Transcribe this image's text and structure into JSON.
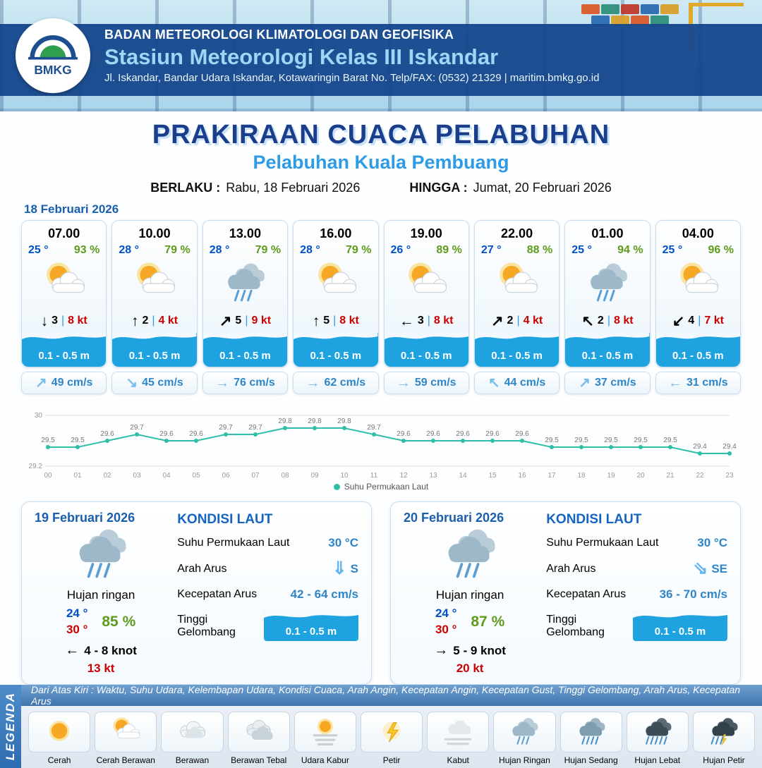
{
  "header": {
    "agency": "BADAN METEOROLOGI KLIMATOLOGI DAN GEOFISIKA",
    "station": "Stasiun Meteorologi Kelas III Iskandar",
    "address": "Jl. Iskandar, Bandar Udara Iskandar, Kotawaringin Barat No. Telp/FAX: (0532) 21329 | maritim.bmkg.go.id",
    "logo_label": "BMKG"
  },
  "title": {
    "main": "PRAKIRAAN CUACA PELABUHAN",
    "subtitle": "Pelabuhan Kuala Pembuang",
    "berlaku_label": "BERLAKU :",
    "berlaku_value": "Rabu, 18 Februari 2026",
    "hingga_label": "HINGGA :",
    "hingga_value": "Jumat, 20 Februari 2026"
  },
  "forecast_date": "18 Februari 2026",
  "forecast_cards": [
    {
      "time": "07.00",
      "temp": "25 °",
      "humidity": "93 %",
      "icon": "cerah-berawan",
      "wind_arrow": "↓",
      "wind_speed": "3",
      "divider": "|",
      "gust": "8 kt",
      "wave": "0.1 - 0.5 m",
      "current_arrow": "↗",
      "current": "49 cm/s"
    },
    {
      "time": "10.00",
      "temp": "28 °",
      "humidity": "79 %",
      "icon": "cerah-berawan",
      "wind_arrow": "↑",
      "wind_speed": "2",
      "divider": "|",
      "gust": "4 kt",
      "wave": "0.1 - 0.5 m",
      "current_arrow": "↘",
      "current": "45 cm/s"
    },
    {
      "time": "13.00",
      "temp": "28 °",
      "humidity": "79 %",
      "icon": "hujan-ringan",
      "wind_arrow": "↗",
      "wind_speed": "5",
      "divider": "|",
      "gust": "9 kt",
      "wave": "0.1 - 0.5 m",
      "current_arrow": "→",
      "current": "76 cm/s"
    },
    {
      "time": "16.00",
      "temp": "28 °",
      "humidity": "79 %",
      "icon": "cerah-berawan",
      "wind_arrow": "↑",
      "wind_speed": "5",
      "divider": "|",
      "gust": "8 kt",
      "wave": "0.1 - 0.5 m",
      "current_arrow": "→",
      "current": "62 cm/s"
    },
    {
      "time": "19.00",
      "temp": "26 °",
      "humidity": "89 %",
      "icon": "cerah-berawan",
      "wind_arrow": "←",
      "wind_speed": "3",
      "divider": "|",
      "gust": "8 kt",
      "wave": "0.1 - 0.5 m",
      "current_arrow": "→",
      "current": "59 cm/s"
    },
    {
      "time": "22.00",
      "temp": "27 °",
      "humidity": "88 %",
      "icon": "cerah-berawan",
      "wind_arrow": "↗",
      "wind_speed": "2",
      "divider": "|",
      "gust": "4 kt",
      "wave": "0.1 - 0.5 m",
      "current_arrow": "↖",
      "current": "44 cm/s"
    },
    {
      "time": "01.00",
      "temp": "25 °",
      "humidity": "94 %",
      "icon": "hujan-ringan",
      "wind_arrow": "↖",
      "wind_speed": "2",
      "divider": "|",
      "gust": "8 kt",
      "wave": "0.1 - 0.5 m",
      "current_arrow": "↗",
      "current": "37 cm/s"
    },
    {
      "time": "04.00",
      "temp": "25 °",
      "humidity": "96 %",
      "icon": "cerah-berawan",
      "wind_arrow": "↙",
      "wind_speed": "4",
      "divider": "|",
      "gust": "7 kt",
      "wave": "0.1 - 0.5 m",
      "current_arrow": "←",
      "current": "31 cm/s"
    }
  ],
  "chart_data": {
    "type": "line",
    "series_name": "Suhu Permukaan Laut",
    "x": [
      "00",
      "01",
      "02",
      "03",
      "04",
      "05",
      "06",
      "07",
      "08",
      "09",
      "10",
      "11",
      "12",
      "13",
      "14",
      "15",
      "16",
      "17",
      "18",
      "19",
      "20",
      "21",
      "22",
      "23"
    ],
    "values": [
      29.5,
      29.5,
      29.6,
      29.7,
      29.6,
      29.6,
      29.7,
      29.7,
      29.8,
      29.8,
      29.8,
      29.7,
      29.6,
      29.6,
      29.6,
      29.6,
      29.6,
      29.5,
      29.5,
      29.5,
      29.5,
      29.5,
      29.4,
      29.4
    ],
    "ylim": [
      29.2,
      30
    ],
    "yticks": [
      29.2,
      30
    ],
    "line_color": "#2fbfa8",
    "grid": true,
    "legend_position": "bottom"
  },
  "day_cards": [
    {
      "date": "19 Februari 2026",
      "icon": "hujan-ringan",
      "condition": "Hujan ringan",
      "temp_min": "24 °",
      "temp_max": "30 °",
      "humidity": "85 %",
      "wind_arrow": "←",
      "wind_range": "4 - 8 knot",
      "gust": "13 kt",
      "sea_title": "KONDISI LAUT",
      "sst_label": "Suhu Permukaan Laut",
      "sst_value": "30 °C",
      "current_dir_label": "Arah Arus",
      "current_dir_arrow": "⇓",
      "current_dir": "S",
      "current_speed_label": "Kecepatan Arus",
      "current_speed": "42 - 64 cm/s",
      "wave_label": "Tinggi Gelombang",
      "wave_value": "0.1 - 0.5 m"
    },
    {
      "date": "20 Februari 2026",
      "icon": "hujan-ringan",
      "condition": "Hujan ringan",
      "temp_min": "24 °",
      "temp_max": "30 °",
      "humidity": "87 %",
      "wind_arrow": "→",
      "wind_range": "5 - 9 knot",
      "gust": "20 kt",
      "sea_title": "KONDISI LAUT",
      "sst_label": "Suhu Permukaan Laut",
      "sst_value": "30 °C",
      "current_dir_label": "Arah Arus",
      "current_dir_arrow": "⇘",
      "current_dir": "SE",
      "current_speed_label": "Kecepatan Arus",
      "current_speed": "36 - 70 cm/s",
      "wave_label": "Tinggi Gelombang",
      "wave_value": "0.1 - 0.5 m"
    }
  ],
  "footer": {
    "note": "Dari Atas Kiri : Waktu, Suhu Udara, Kelembapan Udara, Kondisi Cuaca, Arah Angin, Kecepatan Angin, Kecepatan Gust, Tinggi Gelombang, Arah Arus, Kecepatan Arus",
    "legend_title": "LEGENDA",
    "legend_items": [
      {
        "label": "Cerah",
        "icon": "cerah"
      },
      {
        "label": "Cerah Berawan",
        "icon": "cerah-berawan"
      },
      {
        "label": "Berawan",
        "icon": "berawan"
      },
      {
        "label": "Berawan Tebal",
        "icon": "berawan-tebal"
      },
      {
        "label": "Udara Kabur",
        "icon": "udara-kabur"
      },
      {
        "label": "Petir",
        "icon": "petir"
      },
      {
        "label": "Kabut",
        "icon": "kabut"
      },
      {
        "label": "Hujan Ringan",
        "icon": "hujan-ringan"
      },
      {
        "label": "Hujan Sedang",
        "icon": "hujan-sedang"
      },
      {
        "label": "Hujan Lebat",
        "icon": "hujan-lebat"
      },
      {
        "label": "Hujan Petir",
        "icon": "hujan-petir"
      }
    ]
  },
  "colors": {
    "header_band": "#15478c",
    "accent_blue": "#2e9be4",
    "temp_blue": "#0050c8",
    "humidity_green": "#5f9c1c",
    "gust_red": "#cc0000",
    "wave_blue": "#1fa3e0",
    "sst_line": "#2fbfa8"
  }
}
